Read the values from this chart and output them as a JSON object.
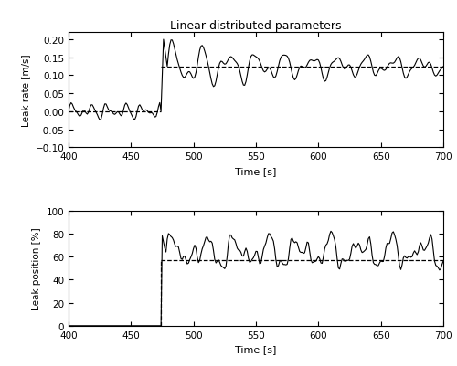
{
  "title": "Linear distributed parameters",
  "t_start": 400,
  "t_end": 700,
  "leak_start": 474,
  "upper": {
    "ylabel": "Leak rate [m/s]",
    "xlabel": "Time [s]",
    "ylim": [
      -0.1,
      0.22
    ],
    "yticks": [
      -0.1,
      -0.05,
      0.0,
      0.05,
      0.1,
      0.15,
      0.2
    ],
    "dashed_before": 0.0,
    "dashed_after": 0.125
  },
  "lower": {
    "ylabel": "Leak position [%]",
    "xlabel": "Time [s]",
    "ylim": [
      0,
      100
    ],
    "yticks": [
      0,
      20,
      40,
      60,
      80,
      100
    ],
    "dashed_value": 57.0
  },
  "xticks": [
    400,
    450,
    500,
    550,
    600,
    650,
    700
  ],
  "line_color": "#000000",
  "dashed_color": "#000000",
  "bg_color": "#ffffff"
}
